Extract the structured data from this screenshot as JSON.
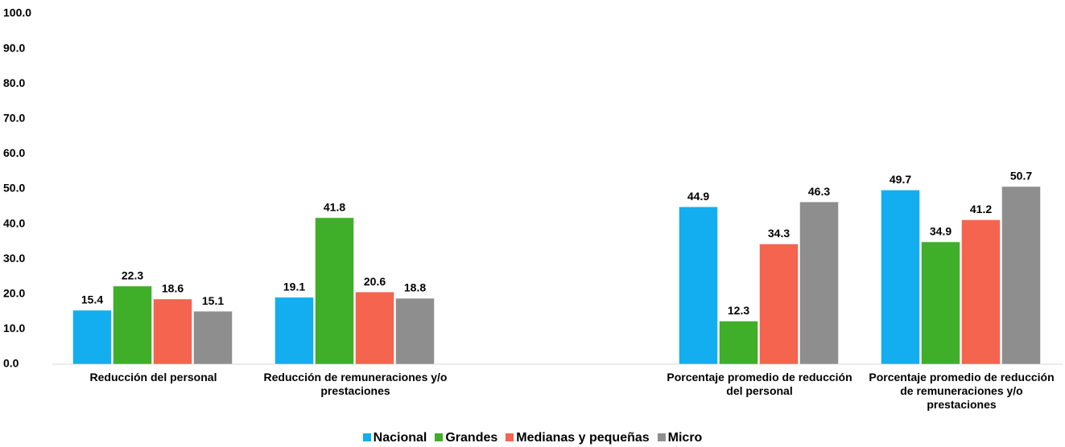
{
  "chart_data": {
    "type": "bar",
    "categories": [
      "Reducción del personal",
      "Reducción de remuneraciones y/o prestaciones",
      null,
      "Porcentaje promedio de reducción del personal",
      "Porcentaje promedio de reducción de remuneraciones y/o prestaciones"
    ],
    "series": [
      {
        "name": "Nacional",
        "color": "#12aef0",
        "values": [
          15.4,
          19.1,
          null,
          44.9,
          49.7
        ]
      },
      {
        "name": "Grandes",
        "color": "#3fae29",
        "values": [
          22.3,
          41.8,
          null,
          12.3,
          34.9
        ]
      },
      {
        "name": "Medianas y pequeñas",
        "color": "#f4644f",
        "values": [
          18.6,
          20.6,
          null,
          34.3,
          41.2
        ]
      },
      {
        "name": "Micro",
        "color": "#8e8e8e",
        "values": [
          15.1,
          18.8,
          null,
          46.3,
          50.7
        ]
      }
    ],
    "ylim": [
      0,
      100
    ],
    "yticks": [
      {
        "value": 0,
        "label": "0.0"
      },
      {
        "value": 10,
        "label": "10.0"
      },
      {
        "value": 20,
        "label": "20.0"
      },
      {
        "value": 30,
        "label": "30.0"
      },
      {
        "value": 40,
        "label": "40.0"
      },
      {
        "value": 50,
        "label": "50.0"
      },
      {
        "value": 60,
        "label": "60.0"
      },
      {
        "value": 70,
        "label": "70.0"
      },
      {
        "value": 80,
        "label": "80.0"
      },
      {
        "value": 90,
        "label": "90.0"
      },
      {
        "value": 100,
        "label": "100.0"
      }
    ],
    "legend": "bottom"
  }
}
